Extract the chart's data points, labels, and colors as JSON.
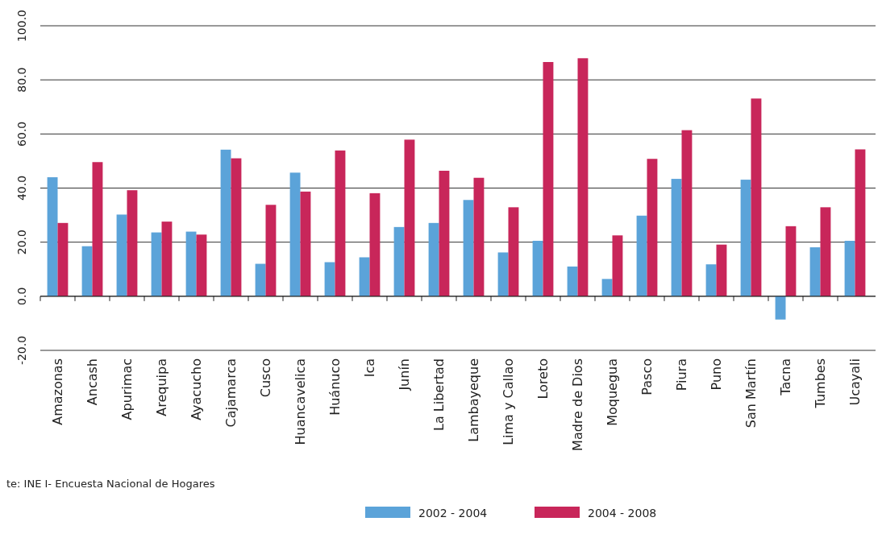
{
  "chart_data": {
    "type": "bar",
    "categories": [
      "Amazonas",
      "Ancash",
      "Apurimac",
      "Arequipa",
      "Ayacucho",
      "Cajamarca",
      "Cusco",
      "Huancavelica",
      "Huánuco",
      "Ica",
      "Junín",
      "La Libertad",
      "Lambayeque",
      "Lima y Callao",
      "Loreto",
      "Madre de Dios",
      "Moquegua",
      "Pasco",
      "Piura",
      "Puno",
      "San Martín",
      "Tacna",
      "Tumbes",
      "Ucayali"
    ],
    "series": [
      {
        "name": "2002 - 2004",
        "color": "#5ba3d9",
        "values": [
          44.0,
          18.5,
          30.2,
          23.6,
          23.9,
          54.2,
          12.0,
          45.7,
          12.6,
          14.4,
          25.6,
          27.1,
          35.6,
          16.2,
          20.5,
          11.0,
          6.4,
          29.8,
          43.4,
          11.8,
          43.1,
          -8.6,
          18.1,
          20.5
        ]
      },
      {
        "name": "2004 - 2008",
        "color": "#c8265a",
        "values": [
          27.1,
          49.6,
          39.2,
          27.6,
          22.8,
          51.0,
          33.8,
          38.7,
          53.9,
          38.1,
          57.9,
          46.4,
          43.8,
          32.9,
          86.6,
          88.0,
          22.5,
          50.8,
          61.4,
          19.1,
          73.1,
          25.9,
          32.9,
          54.3
        ]
      }
    ],
    "ylim": [
      -20,
      100
    ],
    "yticks": [
      {
        "value": -20,
        "label": "-20.0"
      },
      {
        "value": 0,
        "label": "0.0"
      },
      {
        "value": 20,
        "label": "20.0"
      },
      {
        "value": 40,
        "label": "40.0"
      },
      {
        "value": 60,
        "label": "60.0"
      },
      {
        "value": 80,
        "label": "80.0"
      },
      {
        "value": 100,
        "label": "100.0"
      }
    ],
    "grid": "y",
    "legend": "bottom",
    "annotations": [
      "te: INE I- Encuesta Nacional de Hogares"
    ]
  }
}
